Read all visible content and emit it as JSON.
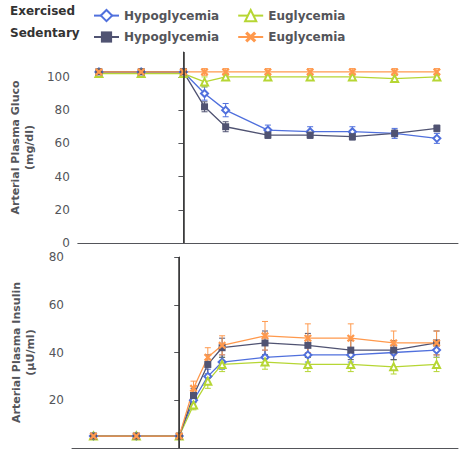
{
  "chart_data": [
    {
      "type": "line",
      "y_label": "Arterial Plasma Gluco\n(mg/dl)",
      "x": [
        -60,
        -30,
        0,
        15,
        30,
        60,
        90,
        120,
        150,
        180
      ],
      "xlim": [
        -75,
        195
      ],
      "ylim": [
        0,
        115
      ],
      "yticks": [
        0,
        20,
        40,
        60,
        80,
        100
      ],
      "vline_x": 0,
      "grid": false,
      "tick_labels": "y",
      "series": [
        {
          "name": "Hypoglycemia",
          "group": "Exercised",
          "marker": "open diamond",
          "values": [
            103,
            103,
            103,
            90,
            80,
            68,
            67,
            67,
            66,
            63
          ],
          "errors": [
            2,
            2,
            2,
            4,
            4,
            3,
            3,
            3,
            3,
            3
          ]
        },
        {
          "name": "Euglycemia",
          "group": "Exercised",
          "marker": "open triangle",
          "values": [
            102,
            102,
            102,
            97,
            100,
            100,
            100,
            100,
            99,
            100
          ],
          "errors": [
            2,
            2,
            2,
            3,
            2,
            2,
            2,
            2,
            2,
            2
          ]
        },
        {
          "name": "Hypoglycemia",
          "group": "Sedentary",
          "marker": "filled square",
          "values": [
            103,
            103,
            103,
            82,
            70,
            65,
            65,
            64,
            66,
            69
          ],
          "errors": [
            2,
            2,
            2,
            3,
            3,
            2,
            2,
            2,
            2,
            2
          ]
        },
        {
          "name": "Euglycemia",
          "group": "Sedentary",
          "marker": "x",
          "values": [
            103,
            103,
            103,
            103,
            103,
            103,
            103,
            103,
            103,
            103
          ],
          "errors": [
            2,
            2,
            2,
            2,
            2,
            2,
            2,
            2,
            2,
            2
          ]
        }
      ]
    },
    {
      "type": "line",
      "y_label": "Arterial Plasma Insulin\n(μU/ml)",
      "x": [
        -60,
        -30,
        0,
        10,
        20,
        30,
        60,
        90,
        120,
        150,
        180
      ],
      "xlim": [
        -75,
        195
      ],
      "ylim": [
        0,
        80
      ],
      "yticks": [
        20,
        40,
        60,
        80
      ],
      "vline_x": 0,
      "grid": false,
      "tick_labels": "y",
      "series": [
        {
          "name": "Hypoglycemia",
          "group": "Exercised",
          "marker": "open diamond",
          "values": [
            5,
            5,
            5,
            20,
            30,
            36,
            38,
            39,
            39,
            40,
            41
          ],
          "errors": [
            1,
            1,
            1,
            3,
            3,
            3,
            3,
            3,
            3,
            3,
            3
          ]
        },
        {
          "name": "Euglycemia",
          "group": "Exercised",
          "marker": "open triangle",
          "values": [
            5,
            5,
            5,
            18,
            28,
            35,
            36,
            35,
            35,
            34,
            35
          ],
          "errors": [
            1,
            1,
            1,
            2,
            3,
            3,
            3,
            3,
            3,
            3,
            3
          ]
        },
        {
          "name": "Hypoglycemia",
          "group": "Sedentary",
          "marker": "filled square",
          "values": [
            5,
            5,
            5,
            22,
            35,
            42,
            44,
            43,
            41,
            41,
            44
          ],
          "errors": [
            1,
            1,
            1,
            3,
            4,
            4,
            5,
            5,
            4,
            4,
            5
          ]
        },
        {
          "name": "Euglycemia",
          "group": "Sedentary",
          "marker": "x",
          "values": [
            5,
            5,
            5,
            25,
            38,
            43,
            47,
            46,
            46,
            44,
            44
          ],
          "errors": [
            1,
            1,
            1,
            3,
            4,
            4,
            6,
            6,
            6,
            5,
            5
          ]
        }
      ]
    }
  ]
}
